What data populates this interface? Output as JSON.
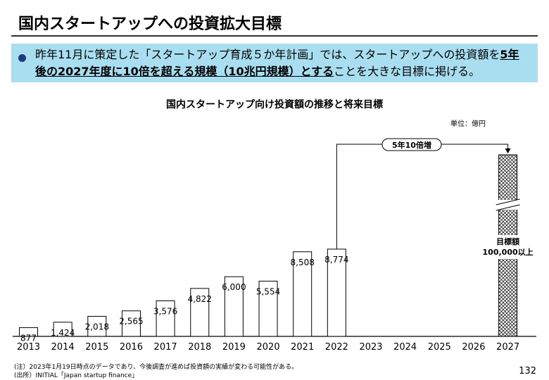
{
  "page": {
    "title": "国内スタートアップへの投資拡大目標",
    "page_number": "132"
  },
  "banner": {
    "text_before": "昨年11月に策定した「スタートアップ育成５か年計画」では、スタートアップへの投資額を",
    "text_emphasis": "5年後の2027年度に10倍を超える規模（10兆円規模）とする",
    "text_after": "ことを大きな目標に掲げる。",
    "bullet_color": "#1f3a7a",
    "background_color": "#a9def0"
  },
  "chart_data": {
    "type": "bar",
    "title": "国内スタートアップ向け投資額の推移と将来目標",
    "unit_label": "単位：億円",
    "categories": [
      "2013",
      "2014",
      "2015",
      "2016",
      "2017",
      "2018",
      "2019",
      "2020",
      "2021",
      "2022",
      "2023",
      "2024",
      "2025",
      "2026",
      "2027"
    ],
    "values": [
      877,
      1424,
      2018,
      2565,
      3576,
      4822,
      6000,
      5554,
      8508,
      8774,
      null,
      null,
      null,
      null,
      null
    ],
    "value_labels": [
      "877",
      "1,424",
      "2,018",
      "2,565",
      "3,576",
      "4,822",
      "6,000",
      "5,554",
      "8,508",
      "8,774",
      "",
      "",
      "",
      "",
      ""
    ],
    "target": {
      "year": "2027",
      "label_line1": "目標額",
      "label_line2": "100,000以上",
      "axis_break": true,
      "fill_pattern": "crosshatch"
    },
    "annotation": {
      "from": "2022",
      "to": "2027",
      "label": "5年10倍増"
    },
    "ylim": [
      0,
      10000
    ],
    "grid": false,
    "legend": "none"
  },
  "notes": {
    "note1": "(注）2023年1月19日時点のデータであり、今後調査が進めば投資額の実績が変わる可能性がある。",
    "note2": "(出所）INITIAL「Japan startup finance」"
  }
}
